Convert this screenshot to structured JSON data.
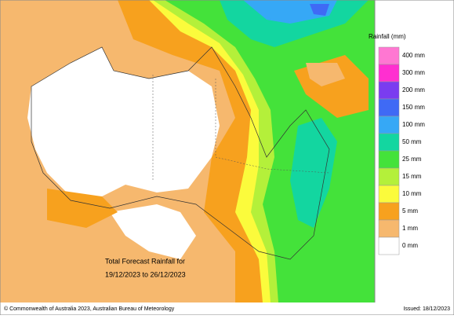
{
  "legend": {
    "title": "Rainfall (mm)",
    "items": [
      {
        "label": "400 mm",
        "color": "#ff77d2"
      },
      {
        "label": "300 mm",
        "color": "#ff2fd0"
      },
      {
        "label": "200 mm",
        "color": "#7a3cf0"
      },
      {
        "label": "150 mm",
        "color": "#3f6af5"
      },
      {
        "label": "100 mm",
        "color": "#36a8f6"
      },
      {
        "label": "50 mm",
        "color": "#13d6a0"
      },
      {
        "label": "25 mm",
        "color": "#44e23a"
      },
      {
        "label": "15 mm",
        "color": "#b4f03a"
      },
      {
        "label": "10 mm",
        "color": "#fbfb3c"
      },
      {
        "label": "5 mm",
        "color": "#f7a11e"
      },
      {
        "label": "1 mm",
        "color": "#f6b86e"
      },
      {
        "label": "0 mm",
        "color": "#ffffff"
      }
    ]
  },
  "caption": {
    "lines": [
      "Total Forecast Rainfall for",
      "19/12/2023 to 26/12/2023"
    ]
  },
  "footer": {
    "copyright": "© Commonwealth of Australia 2023, Australian Bureau of Meteorology",
    "issued": "Issued: 18/12/2023"
  }
}
